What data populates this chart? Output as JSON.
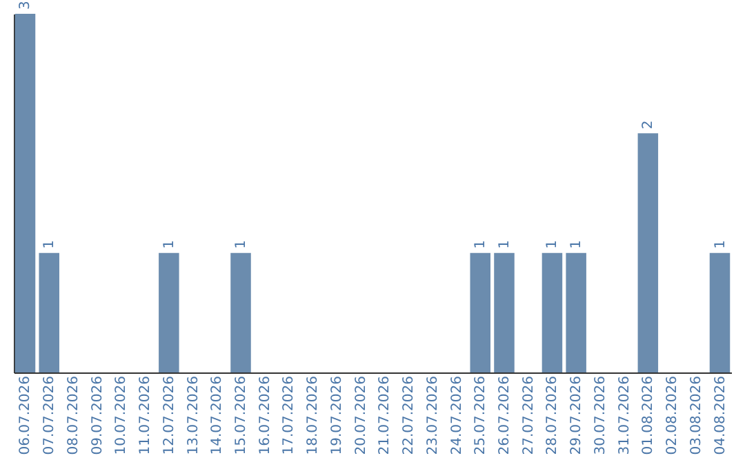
{
  "chart_data": {
    "type": "bar",
    "categories": [
      "06.07.2026",
      "07.07.2026",
      "08.07.2026",
      "09.07.2026",
      "10.07.2026",
      "11.07.2026",
      "12.07.2026",
      "13.07.2026",
      "14.07.2026",
      "15.07.2026",
      "16.07.2026",
      "17.07.2026",
      "18.07.2026",
      "19.07.2026",
      "20.07.2026",
      "21.07.2026",
      "22.07.2026",
      "23.07.2026",
      "24.07.2026",
      "25.07.2026",
      "26.07.2026",
      "27.07.2026",
      "28.07.2026",
      "29.07.2026",
      "30.07.2026",
      "31.07.2026",
      "01.08.2026",
      "02.08.2026",
      "03.08.2026",
      "04.08.2026"
    ],
    "values": [
      3,
      1,
      0,
      0,
      0,
      0,
      1,
      0,
      0,
      1,
      0,
      0,
      0,
      0,
      0,
      0,
      0,
      0,
      0,
      1,
      1,
      0,
      1,
      1,
      0,
      0,
      2,
      0,
      0,
      1
    ],
    "value_labels": [
      "3",
      "1",
      null,
      null,
      null,
      null,
      "1",
      null,
      null,
      "1",
      null,
      null,
      null,
      null,
      null,
      null,
      null,
      null,
      null,
      "1",
      "1",
      null,
      "1",
      "1",
      null,
      null,
      "2",
      null,
      null,
      "1"
    ],
    "color": "#6b8cae",
    "ylim": [
      0,
      3
    ],
    "tick_labels": "x"
  }
}
